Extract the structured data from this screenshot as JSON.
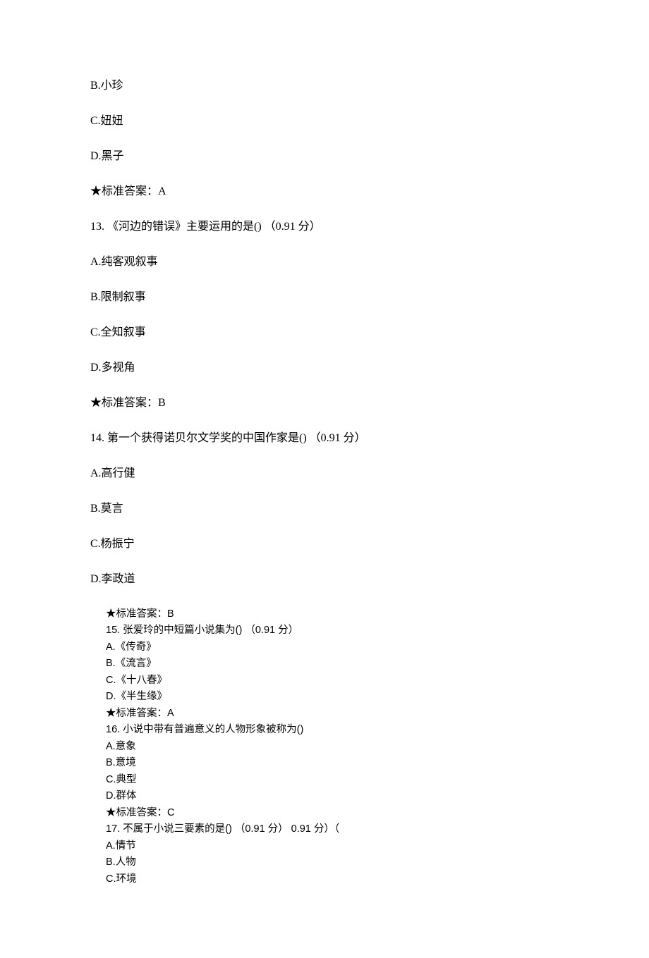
{
  "spaced": {
    "opt_b": "B.小珍",
    "opt_c": "C.妞妞",
    "opt_d": "D.黑子",
    "answer12": "★标准答案：A",
    "q13": "13. 《河边的错误》主要运用的是() （0.91 分）",
    "q13_a": "A.纯客观叙事",
    "q13_b": "B.限制叙事",
    "q13_c": "C.全知叙事",
    "q13_d": "D.多视角",
    "answer13": "★标准答案：B",
    "q14": "14. 第一个获得诺贝尔文学奖的中国作家是() （0.91 分）",
    "q14_a": "A.高行健",
    "q14_b": "B.莫言",
    "q14_c": "C.杨振宁",
    "q14_d": "D.李政道"
  },
  "dense": {
    "answer14": "★标准答案：B",
    "q15": "15. 张爱玲的中短篇小说集为() （0.91 分）",
    "q15_a": "A.《传奇》",
    "q15_b": "B.《流言》",
    "q15_c": "C.《十八春》",
    "q15_d": "D.《半生缘》",
    "answer15": "★标准答案：A",
    "q16": "16. 小说中带有普遍意义的人物形象被称为()",
    "q16_a": "A.意象",
    "q16_b": "B.意境",
    "q16_c": "C.典型",
    "q16_d": "D.群体",
    "answer16": "★标准答案：C",
    "q17": "17. 不属于小说三要素的是() （0.91 分） 0.91 分）（",
    "q17_a": "A.情节",
    "q17_b": "B.人物",
    "q17_c": "C.环境"
  }
}
